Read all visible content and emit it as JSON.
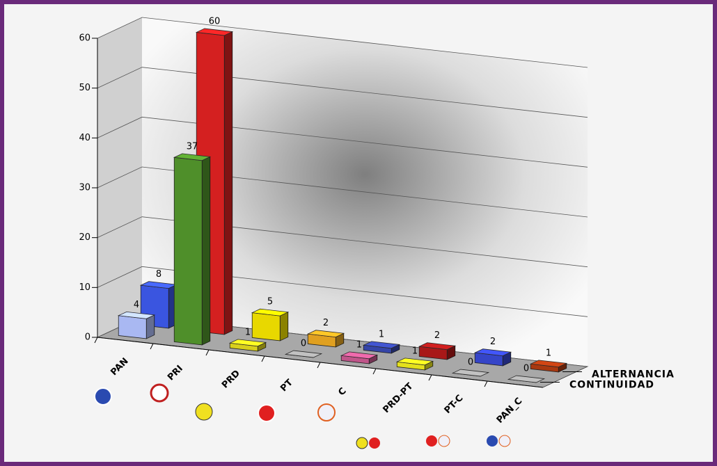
{
  "chart_data": {
    "type": "bar3d",
    "categories": [
      "PAN",
      "PRI",
      "PRD",
      "PT",
      "C",
      "PRD-PT",
      "PT-C",
      "PAN_C"
    ],
    "series": [
      {
        "name": "CONTINUIDAD",
        "values": [
          4,
          37,
          1,
          0,
          1,
          1,
          0,
          0
        ],
        "colors": [
          "#a9b8f2",
          "#4f8f2a",
          "#d8cf1c",
          "#9a9a9a",
          "#c0558a",
          "#e4e01c",
          "#9a9a9a",
          "#9a9a9a"
        ]
      },
      {
        "name": "ALTERNANCIA",
        "values": [
          8,
          60,
          5,
          2,
          1,
          2,
          2,
          1
        ],
        "colors": [
          "#3a55e0",
          "#d42020",
          "#e8d800",
          "#e0a020",
          "#3545a8",
          "#a81818",
          "#3545c8",
          "#a83810"
        ]
      }
    ],
    "ylim": [
      0,
      60
    ],
    "yticks": [
      0,
      10,
      20,
      30,
      40,
      50,
      60
    ],
    "grid": true
  }
}
